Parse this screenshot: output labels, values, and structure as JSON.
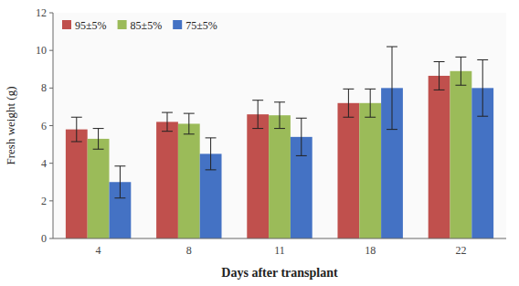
{
  "chart_data": {
    "type": "bar",
    "categories": [
      "4",
      "8",
      "11",
      "18",
      "22"
    ],
    "series": [
      {
        "name": "95±5%",
        "color": "#C0504D",
        "values": [
          5.8,
          6.2,
          6.6,
          7.2,
          8.65
        ],
        "errors": [
          0.65,
          0.5,
          0.75,
          0.75,
          0.75
        ]
      },
      {
        "name": "85±5%",
        "color": "#9BBB59",
        "values": [
          5.3,
          6.1,
          6.55,
          7.2,
          8.9
        ],
        "errors": [
          0.55,
          0.55,
          0.7,
          0.75,
          0.75
        ]
      },
      {
        "name": "75±5%",
        "color": "#4472C4",
        "values": [
          3.0,
          4.5,
          5.4,
          8.0,
          8.0
        ],
        "errors": [
          0.85,
          0.85,
          1.0,
          2.2,
          1.5
        ]
      }
    ],
    "xlabel": "Days after transplant",
    "ylabel": "Fresh weight (g)",
    "ylim": [
      0,
      12
    ],
    "yticks": [
      0,
      2,
      4,
      6,
      8,
      10,
      12
    ],
    "grid": false,
    "legend": "upper left"
  }
}
